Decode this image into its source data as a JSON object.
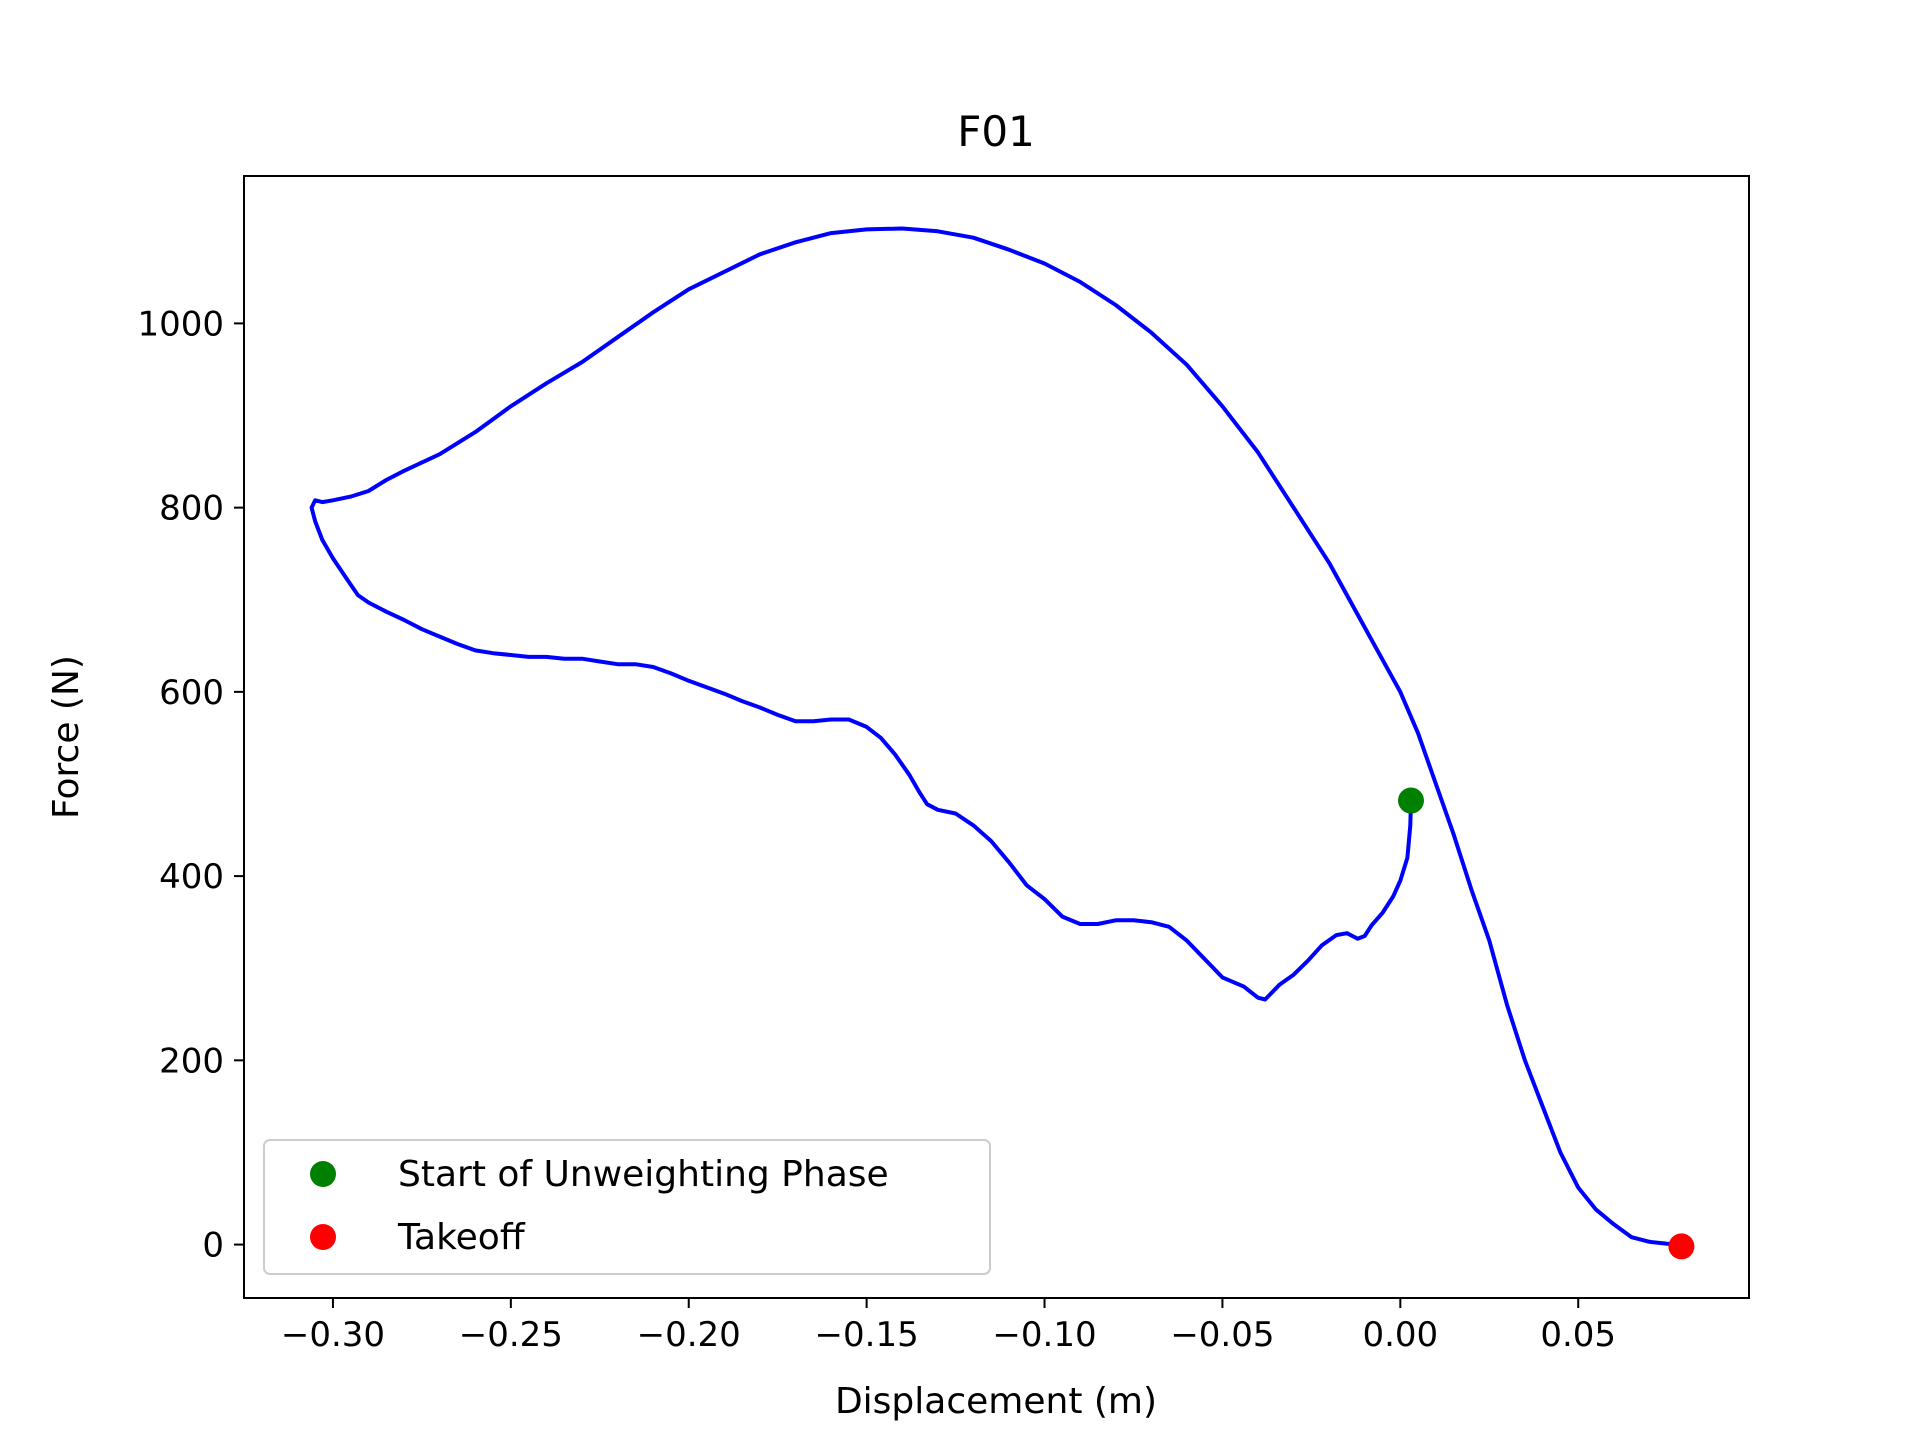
{
  "chart_data": {
    "type": "line",
    "title": "F01",
    "xlabel": "Displacement (m)",
    "ylabel": "Force (N)",
    "xlim": [
      -0.325,
      0.098
    ],
    "ylim": [
      -58,
      1160
    ],
    "x_ticks": [
      -0.3,
      -0.25,
      -0.2,
      -0.15,
      -0.1,
      -0.05,
      0.0,
      0.05
    ],
    "x_tick_labels": [
      "−0.30",
      "−0.25",
      "−0.20",
      "−0.15",
      "−0.10",
      "−0.05",
      "0.00",
      "0.05"
    ],
    "y_ticks": [
      0,
      200,
      400,
      600,
      800,
      1000
    ],
    "y_tick_labels": [
      "0",
      "200",
      "400",
      "600",
      "800",
      "1000"
    ],
    "grid": false,
    "legend_position": "lower-left",
    "series": [
      {
        "color": "#0000ff",
        "points": [
          [
            0.003,
            482
          ],
          [
            0.0028,
            455
          ],
          [
            0.002,
            420
          ],
          [
            0.0,
            395
          ],
          [
            -0.002,
            378
          ],
          [
            -0.005,
            360
          ],
          [
            -0.008,
            347
          ],
          [
            -0.01,
            335
          ],
          [
            -0.012,
            332
          ],
          [
            -0.013,
            334
          ],
          [
            -0.015,
            338
          ],
          [
            -0.018,
            336
          ],
          [
            -0.022,
            325
          ],
          [
            -0.026,
            308
          ],
          [
            -0.03,
            293
          ],
          [
            -0.034,
            282
          ],
          [
            -0.038,
            266
          ],
          [
            -0.04,
            268
          ],
          [
            -0.044,
            280
          ],
          [
            -0.05,
            290
          ],
          [
            -0.055,
            310
          ],
          [
            -0.06,
            330
          ],
          [
            -0.065,
            345
          ],
          [
            -0.07,
            350
          ],
          [
            -0.075,
            352
          ],
          [
            -0.08,
            352
          ],
          [
            -0.085,
            348
          ],
          [
            -0.09,
            348
          ],
          [
            -0.095,
            356
          ],
          [
            -0.1,
            375
          ],
          [
            -0.105,
            390
          ],
          [
            -0.11,
            415
          ],
          [
            -0.115,
            438
          ],
          [
            -0.12,
            455
          ],
          [
            -0.125,
            468
          ],
          [
            -0.13,
            472
          ],
          [
            -0.133,
            478
          ],
          [
            -0.135,
            490
          ],
          [
            -0.138,
            510
          ],
          [
            -0.142,
            532
          ],
          [
            -0.146,
            550
          ],
          [
            -0.15,
            562
          ],
          [
            -0.155,
            570
          ],
          [
            -0.16,
            570
          ],
          [
            -0.165,
            568
          ],
          [
            -0.17,
            568
          ],
          [
            -0.175,
            575
          ],
          [
            -0.18,
            583
          ],
          [
            -0.185,
            590
          ],
          [
            -0.19,
            598
          ],
          [
            -0.195,
            605
          ],
          [
            -0.2,
            612
          ],
          [
            -0.205,
            620
          ],
          [
            -0.21,
            627
          ],
          [
            -0.215,
            630
          ],
          [
            -0.22,
            630
          ],
          [
            -0.225,
            633
          ],
          [
            -0.23,
            636
          ],
          [
            -0.235,
            636
          ],
          [
            -0.24,
            638
          ],
          [
            -0.245,
            638
          ],
          [
            -0.25,
            640
          ],
          [
            -0.255,
            642
          ],
          [
            -0.26,
            645
          ],
          [
            -0.265,
            652
          ],
          [
            -0.27,
            660
          ],
          [
            -0.275,
            668
          ],
          [
            -0.28,
            678
          ],
          [
            -0.285,
            687
          ],
          [
            -0.29,
            697
          ],
          [
            -0.293,
            705
          ],
          [
            -0.296,
            722
          ],
          [
            -0.3,
            745
          ],
          [
            -0.303,
            765
          ],
          [
            -0.305,
            785
          ],
          [
            -0.306,
            800
          ],
          [
            -0.305,
            808
          ],
          [
            -0.303,
            806
          ],
          [
            -0.3,
            808
          ],
          [
            -0.295,
            812
          ],
          [
            -0.29,
            818
          ],
          [
            -0.285,
            830
          ],
          [
            -0.28,
            840
          ],
          [
            -0.27,
            858
          ],
          [
            -0.26,
            882
          ],
          [
            -0.25,
            910
          ],
          [
            -0.24,
            935
          ],
          [
            -0.23,
            958
          ],
          [
            -0.22,
            985
          ],
          [
            -0.21,
            1012
          ],
          [
            -0.2,
            1037
          ],
          [
            -0.19,
            1056
          ],
          [
            -0.18,
            1075
          ],
          [
            -0.17,
            1088
          ],
          [
            -0.16,
            1098
          ],
          [
            -0.15,
            1102
          ],
          [
            -0.14,
            1103
          ],
          [
            -0.13,
            1100
          ],
          [
            -0.12,
            1093
          ],
          [
            -0.11,
            1080
          ],
          [
            -0.1,
            1065
          ],
          [
            -0.09,
            1045
          ],
          [
            -0.08,
            1020
          ],
          [
            -0.07,
            990
          ],
          [
            -0.06,
            955
          ],
          [
            -0.05,
            910
          ],
          [
            -0.04,
            860
          ],
          [
            -0.03,
            800
          ],
          [
            -0.02,
            740
          ],
          [
            -0.01,
            670
          ],
          [
            0.0,
            600
          ],
          [
            0.005,
            555
          ],
          [
            0.01,
            500
          ],
          [
            0.015,
            445
          ],
          [
            0.02,
            385
          ],
          [
            0.025,
            330
          ],
          [
            0.03,
            260
          ],
          [
            0.035,
            200
          ],
          [
            0.04,
            150
          ],
          [
            0.045,
            100
          ],
          [
            0.05,
            62
          ],
          [
            0.055,
            38
          ],
          [
            0.06,
            22
          ],
          [
            0.065,
            8
          ],
          [
            0.07,
            3
          ],
          [
            0.075,
            1
          ],
          [
            0.079,
            0
          ]
        ]
      }
    ],
    "markers": [
      {
        "label": "Start of Unweighting Phase",
        "x": 0.003,
        "y": 482,
        "color": "#008000"
      },
      {
        "label": "Takeoff",
        "x": 0.079,
        "y": -2,
        "color": "#ff0000"
      }
    ]
  }
}
